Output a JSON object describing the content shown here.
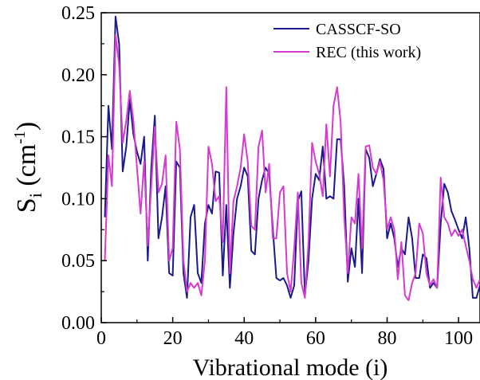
{
  "chart_data": {
    "type": "line",
    "title": "",
    "xlabel": "Vibrational mode (i)",
    "ylabel": {
      "base": "S",
      "sub": "i",
      "unit_open": " (cm",
      "sup": "-1",
      "unit_close": ")"
    },
    "xlim": [
      0,
      106
    ],
    "ylim": [
      0.0,
      0.25
    ],
    "xticks": [
      0,
      20,
      40,
      60,
      80,
      100
    ],
    "xtick_labels": [
      "0",
      "20",
      "40",
      "60",
      "80",
      "100"
    ],
    "yticks": [
      0.0,
      0.05,
      0.1,
      0.15,
      0.2,
      0.25
    ],
    "ytick_labels": [
      "0.00",
      "0.05",
      "0.10",
      "0.15",
      "0.20",
      "0.25"
    ],
    "grid": false,
    "legend_position": "top-right",
    "series": [
      {
        "name": "CASSCF-SO",
        "color": "#1a1a8c",
        "x": [
          1,
          2,
          3,
          4,
          5,
          6,
          7,
          8,
          9,
          10,
          11,
          12,
          13,
          14,
          15,
          16,
          17,
          18,
          19,
          20,
          21,
          22,
          23,
          24,
          25,
          26,
          27,
          28,
          29,
          30,
          31,
          32,
          33,
          34,
          35,
          36,
          37,
          38,
          39,
          40,
          41,
          42,
          43,
          44,
          45,
          46,
          47,
          48,
          49,
          50,
          51,
          52,
          53,
          54,
          55,
          56,
          57,
          58,
          59,
          60,
          61,
          62,
          63,
          64,
          65,
          66,
          67,
          68,
          69,
          70,
          71,
          72,
          73,
          74,
          75,
          76,
          77,
          78,
          79,
          80,
          81,
          82,
          83,
          84,
          85,
          86,
          87,
          88,
          89,
          90,
          91,
          92,
          93,
          94,
          95,
          96,
          97,
          98,
          99,
          100,
          101,
          102,
          103,
          104,
          105,
          106
        ],
        "values": [
          0.085,
          0.175,
          0.14,
          0.247,
          0.225,
          0.122,
          0.142,
          0.18,
          0.152,
          0.138,
          0.128,
          0.15,
          0.05,
          0.125,
          0.167,
          0.068,
          0.085,
          0.11,
          0.04,
          0.038,
          0.13,
          0.125,
          0.04,
          0.02,
          0.085,
          0.095,
          0.04,
          0.032,
          0.08,
          0.095,
          0.088,
          0.122,
          0.121,
          0.038,
          0.095,
          0.028,
          0.072,
          0.1,
          0.11,
          0.125,
          0.118,
          0.058,
          0.055,
          0.1,
          0.115,
          0.125,
          0.12,
          0.076,
          0.036,
          0.034,
          0.036,
          0.03,
          0.02,
          0.03,
          0.098,
          0.106,
          0.022,
          0.05,
          0.1,
          0.12,
          0.115,
          0.142,
          0.1,
          0.102,
          0.1,
          0.148,
          0.148,
          0.11,
          0.033,
          0.06,
          0.045,
          0.1,
          0.04,
          0.14,
          0.133,
          0.11,
          0.12,
          0.132,
          0.124,
          0.068,
          0.08,
          0.068,
          0.045,
          0.06,
          0.055,
          0.085,
          0.068,
          0.036,
          0.036,
          0.055,
          0.052,
          0.028,
          0.032,
          0.028,
          0.08,
          0.112,
          0.105,
          0.09,
          0.083,
          0.075,
          0.068,
          0.085,
          0.06,
          0.02,
          0.02,
          0.03
        ]
      },
      {
        "name": "REC (this work)",
        "color": "#d63ad1",
        "x": [
          1,
          2,
          3,
          4,
          5,
          6,
          7,
          8,
          9,
          10,
          11,
          12,
          13,
          14,
          15,
          16,
          17,
          18,
          19,
          20,
          21,
          22,
          23,
          24,
          25,
          26,
          27,
          28,
          29,
          30,
          31,
          32,
          33,
          34,
          35,
          36,
          37,
          38,
          39,
          40,
          41,
          42,
          43,
          44,
          45,
          46,
          47,
          48,
          49,
          50,
          51,
          52,
          53,
          54,
          55,
          56,
          57,
          58,
          59,
          60,
          61,
          62,
          63,
          64,
          65,
          66,
          67,
          68,
          69,
          70,
          71,
          72,
          73,
          74,
          75,
          76,
          77,
          78,
          79,
          80,
          81,
          82,
          83,
          84,
          85,
          86,
          87,
          88,
          89,
          90,
          91,
          92,
          93,
          94,
          95,
          96,
          97,
          98,
          99,
          100,
          101,
          102,
          103,
          104,
          105,
          106
        ],
        "values": [
          0.05,
          0.135,
          0.11,
          0.232,
          0.208,
          0.145,
          0.163,
          0.187,
          0.163,
          0.125,
          0.088,
          0.13,
          0.062,
          0.11,
          0.158,
          0.105,
          0.112,
          0.135,
          0.05,
          0.06,
          0.162,
          0.14,
          0.05,
          0.025,
          0.032,
          0.028,
          0.032,
          0.022,
          0.05,
          0.142,
          0.128,
          0.098,
          0.102,
          0.065,
          0.19,
          0.04,
          0.098,
          0.11,
          0.125,
          0.152,
          0.13,
          0.078,
          0.075,
          0.142,
          0.155,
          0.105,
          0.128,
          0.068,
          0.068,
          0.105,
          0.11,
          0.04,
          0.025,
          0.06,
          0.105,
          0.032,
          0.02,
          0.065,
          0.145,
          0.13,
          0.12,
          0.102,
          0.16,
          0.118,
          0.175,
          0.19,
          0.162,
          0.085,
          0.04,
          0.085,
          0.08,
          0.12,
          0.06,
          0.142,
          0.143,
          0.125,
          0.12,
          0.13,
          0.115,
          0.075,
          0.085,
          0.075,
          0.035,
          0.065,
          0.022,
          0.018,
          0.032,
          0.04,
          0.08,
          0.072,
          0.04,
          0.03,
          0.035,
          0.028,
          0.117,
          0.085,
          0.08,
          0.07,
          0.075,
          0.07,
          0.075,
          0.062,
          0.05,
          0.035,
          0.028,
          0.035
        ]
      }
    ]
  }
}
